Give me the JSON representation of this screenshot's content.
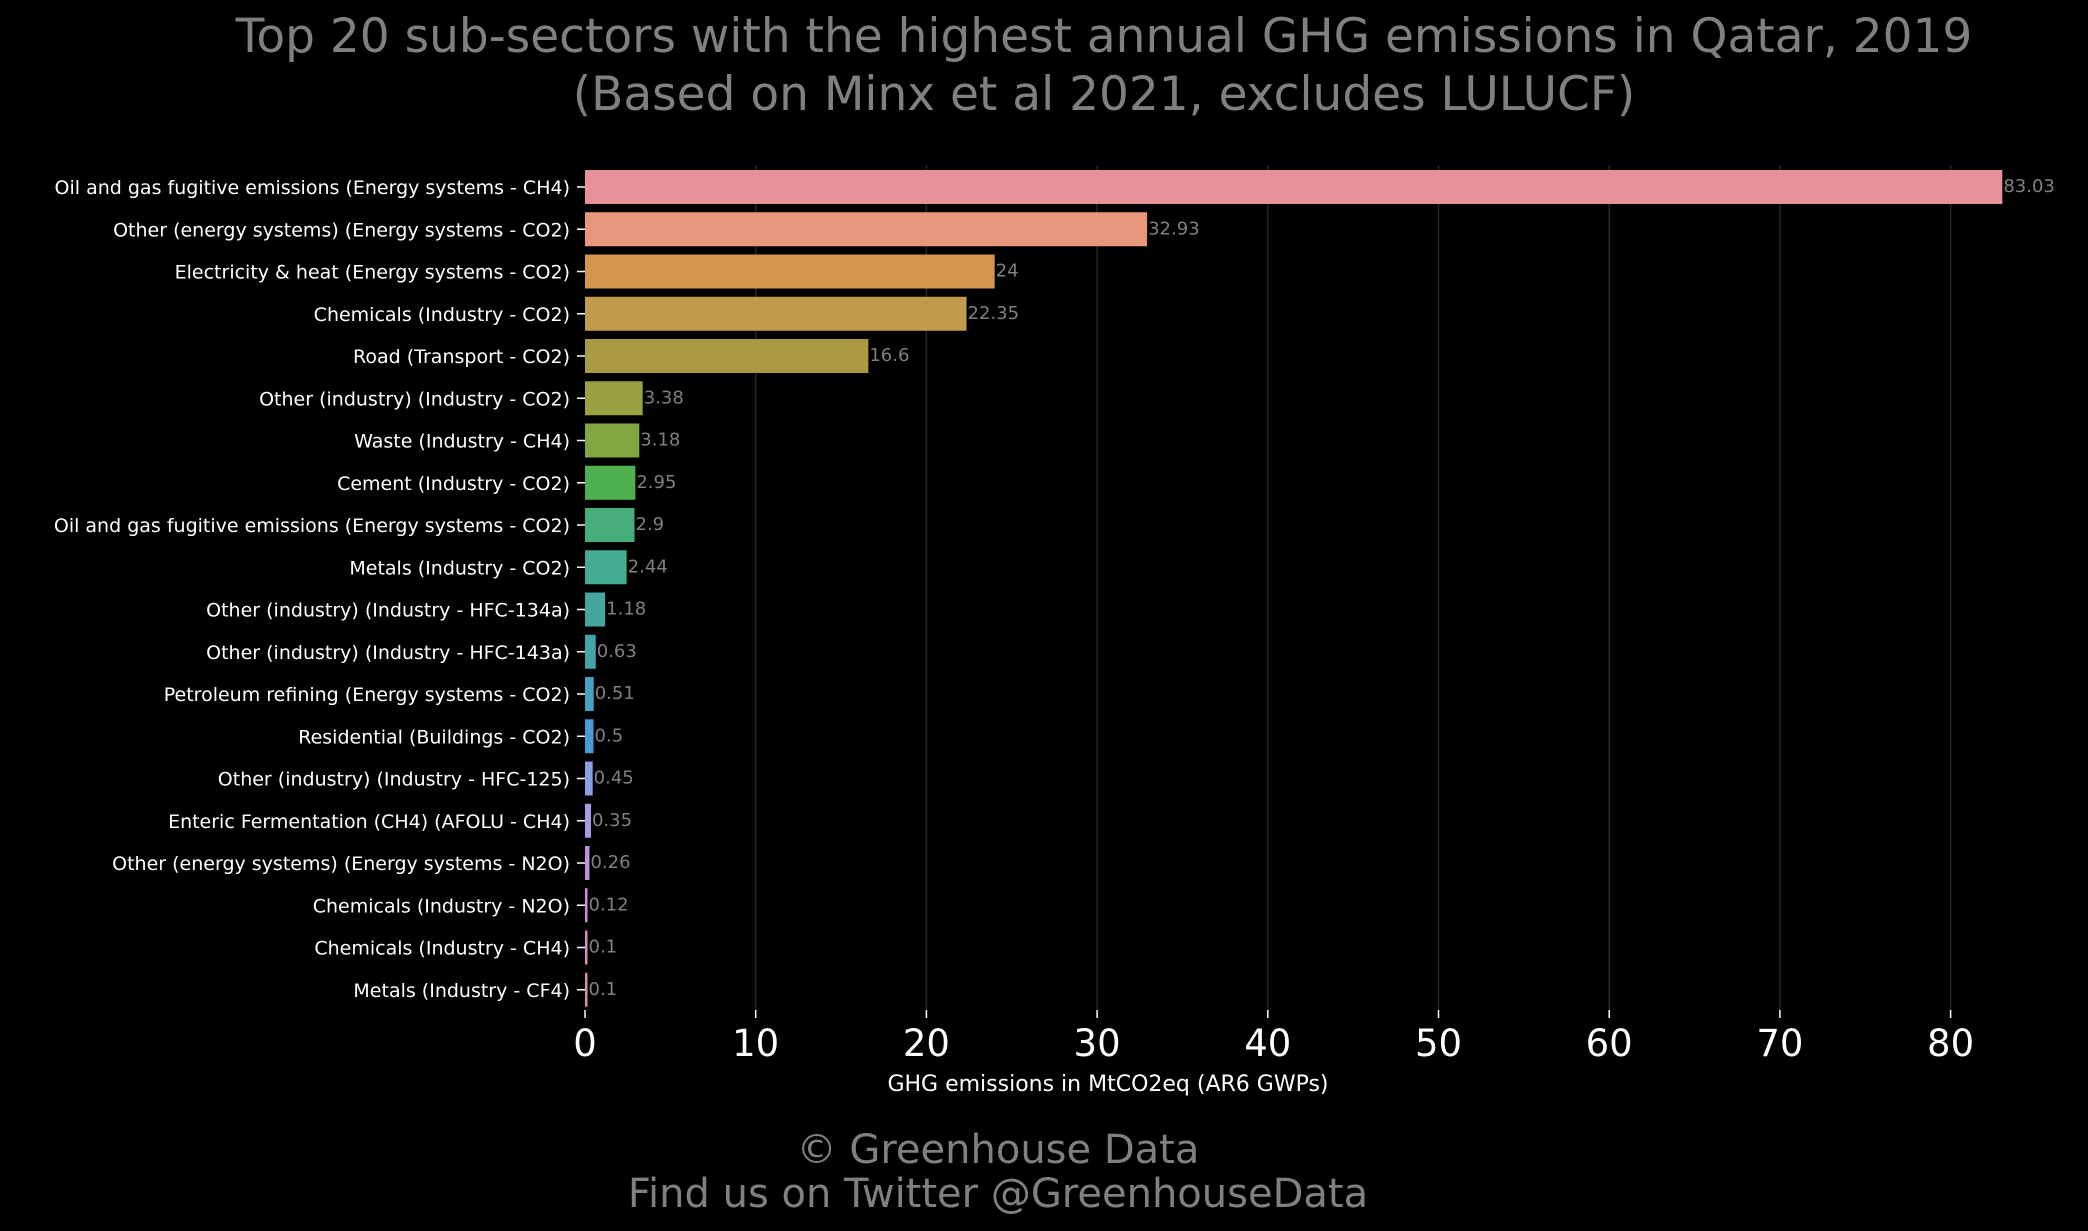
{
  "chart_data": {
    "type": "bar",
    "orientation": "horizontal",
    "title": [
      "Top 20 sub-sectors with the highest annual GHG emissions in Qatar, 2019",
      "(Based on Minx et al 2021, excludes LULUCF)"
    ],
    "xlabel": "GHG emissions in MtCO2eq (AR6 GWPs)",
    "ylabel": "",
    "xlim": [
      0,
      84
    ],
    "xticks": [
      "0",
      "10",
      "20",
      "30",
      "40",
      "50",
      "60",
      "70",
      "80"
    ],
    "grid": "vertical",
    "categories": [
      "Oil and gas fugitive emissions (Energy systems - CH4)",
      "Other (energy systems) (Energy systems - CO2)",
      "Electricity & heat (Energy systems - CO2)",
      "Chemicals (Industry - CO2)",
      "Road (Transport - CO2)",
      "Other (industry) (Industry - CO2)",
      "Waste (Industry - CH4)",
      "Cement (Industry - CO2)",
      "Oil and gas fugitive emissions (Energy systems - CO2)",
      "Metals (Industry - CO2)",
      "Other (industry) (Industry - HFC-134a)",
      "Other (industry) (Industry - HFC-143a)",
      "Petroleum refining (Energy systems - CO2)",
      "Residential (Buildings - CO2)",
      "Other (industry) (Industry - HFC-125)",
      "Enteric Fermentation (CH4) (AFOLU - CH4)",
      "Other (energy systems) (Energy systems - N2O)",
      "Chemicals (Industry - N2O)",
      "Chemicals (Industry - CH4)",
      "Metals (Industry - CF4)"
    ],
    "values": [
      83.03,
      32.93,
      24,
      22.35,
      16.6,
      3.38,
      3.18,
      2.95,
      2.9,
      2.44,
      1.18,
      0.63,
      0.51,
      0.5,
      0.45,
      0.35,
      0.26,
      0.12,
      0.1,
      0.1
    ],
    "value_labels": [
      "83.03",
      "32.93",
      "24",
      "22.35",
      "16.6",
      "3.38",
      "3.18",
      "2.95",
      "2.9",
      "2.44",
      "1.18",
      "0.63",
      "0.51",
      "0.5",
      "0.45",
      "0.35",
      "0.26",
      "0.12",
      "0.1",
      "0.1"
    ],
    "colors": [
      "#e8919b",
      "#e8977d",
      "#d4964e",
      "#c29a4c",
      "#aa9a42",
      "#9aa142",
      "#82a742",
      "#4eb14f",
      "#46ae7b",
      "#44ab92",
      "#43a6a1",
      "#45a3ad",
      "#45a2c4",
      "#4a9ad6",
      "#8aa1e0",
      "#a89ae5",
      "#c190e0",
      "#d18cd8",
      "#dd8ac2",
      "#e08aa6"
    ]
  },
  "footer": {
    "line1": "© Greenhouse Data",
    "line2": "Find us on Twitter @GreenhouseData"
  }
}
